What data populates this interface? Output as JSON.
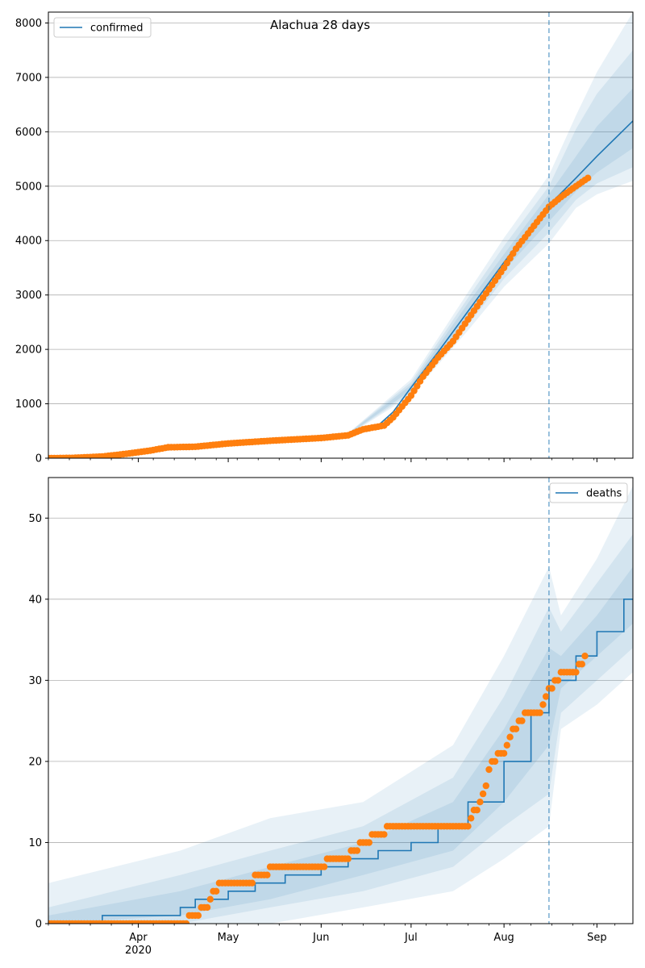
{
  "figure_title": "Alachua 28 days",
  "colors": {
    "model_line": "#1f77b4",
    "observed": "#ff7f0e",
    "band": "#1f77b4",
    "grid": "#b0b0b0",
    "vline": "#1f77b4"
  },
  "x_axis": {
    "range": [
      "2020-03-02",
      "2020-09-13"
    ],
    "major_ticks": [
      {
        "date": "2020-04-01",
        "label": "Apr",
        "sub": "2020"
      },
      {
        "date": "2020-05-01",
        "label": "May",
        "sub": ""
      },
      {
        "date": "2020-06-01",
        "label": "Jun",
        "sub": ""
      },
      {
        "date": "2020-07-01",
        "label": "Jul",
        "sub": ""
      },
      {
        "date": "2020-08-01",
        "label": "Aug",
        "sub": ""
      },
      {
        "date": "2020-09-01",
        "label": "Sep",
        "sub": ""
      }
    ],
    "forecast_start": "2020-08-16"
  },
  "chart_data": [
    {
      "type": "line",
      "name": "confirmed",
      "legend": {
        "label": "confirmed",
        "position": "top-left"
      },
      "ylim": [
        0,
        8200
      ],
      "yticks": [
        0,
        1000,
        2000,
        3000,
        4000,
        5000,
        6000,
        7000,
        8000
      ],
      "grid": "horizontal",
      "model": {
        "x": [
          "2020-03-02",
          "2020-03-15",
          "2020-04-01",
          "2020-04-15",
          "2020-05-01",
          "2020-05-15",
          "2020-06-01",
          "2020-06-10",
          "2020-06-20",
          "2020-06-25",
          "2020-07-01",
          "2020-07-10",
          "2020-07-20",
          "2020-08-01",
          "2020-08-10",
          "2020-08-16",
          "2020-08-25",
          "2020-09-01",
          "2020-09-13"
        ],
        "y": [
          0,
          10,
          90,
          180,
          270,
          320,
          380,
          430,
          600,
          850,
          1300,
          1950,
          2700,
          3600,
          4250,
          4650,
          5150,
          5550,
          6200
        ]
      },
      "bands": [
        {
          "x": [
            "2020-06-10",
            "2020-07-01",
            "2020-07-20",
            "2020-08-01",
            "2020-08-16",
            "2020-08-25",
            "2020-09-01",
            "2020-09-13"
          ],
          "lower": [
            420,
            1150,
            2350,
            3150,
            3950,
            4600,
            4850,
            5100
          ],
          "upper": [
            460,
            1450,
            3050,
            4050,
            5200,
            6300,
            7100,
            8200
          ]
        },
        {
          "x": [
            "2020-06-10",
            "2020-07-01",
            "2020-07-20",
            "2020-08-01",
            "2020-08-16",
            "2020-08-25",
            "2020-09-01",
            "2020-09-13"
          ],
          "lower": [
            425,
            1200,
            2450,
            3300,
            4150,
            4750,
            5050,
            5350
          ],
          "upper": [
            455,
            1400,
            2950,
            3900,
            5000,
            6050,
            6700,
            7500
          ]
        },
        {
          "x": [
            "2020-06-10",
            "2020-07-01",
            "2020-07-20",
            "2020-08-01",
            "2020-08-16",
            "2020-08-25",
            "2020-09-01",
            "2020-09-13"
          ],
          "lower": [
            430,
            1250,
            2550,
            3450,
            4350,
            4900,
            5250,
            5700
          ],
          "upper": [
            450,
            1350,
            2850,
            3750,
            4850,
            5550,
            6100,
            6800
          ]
        }
      ],
      "observed": {
        "x": [
          "2020-03-02",
          "2020-03-10",
          "2020-03-20",
          "2020-03-28",
          "2020-04-05",
          "2020-04-11",
          "2020-04-20",
          "2020-05-01",
          "2020-05-15",
          "2020-06-01",
          "2020-06-10",
          "2020-06-15",
          "2020-06-22",
          "2020-06-25",
          "2020-07-01",
          "2020-07-05",
          "2020-07-10",
          "2020-07-15",
          "2020-07-20",
          "2020-07-25",
          "2020-08-01",
          "2020-08-05",
          "2020-08-10",
          "2020-08-16",
          "2020-08-20",
          "2020-08-25",
          "2020-08-29"
        ],
        "y": [
          0,
          5,
          30,
          80,
          140,
          200,
          210,
          270,
          320,
          370,
          420,
          530,
          600,
          750,
          1150,
          1500,
          1850,
          2150,
          2550,
          2950,
          3500,
          3850,
          4200,
          4620,
          4800,
          5000,
          5150
        ]
      }
    },
    {
      "type": "line",
      "name": "deaths",
      "legend": {
        "label": "deaths",
        "position": "top-right"
      },
      "ylim": [
        0,
        55
      ],
      "yticks": [
        0,
        10,
        20,
        30,
        40,
        50
      ],
      "grid": "horizontal",
      "model": {
        "x": [
          "2020-03-02",
          "2020-03-11",
          "2020-03-20",
          "2020-04-01",
          "2020-04-15",
          "2020-04-20",
          "2020-05-01",
          "2020-05-10",
          "2020-05-20",
          "2020-06-01",
          "2020-06-10",
          "2020-06-20",
          "2020-07-01",
          "2020-07-10",
          "2020-07-20",
          "2020-08-01",
          "2020-08-10",
          "2020-08-16",
          "2020-08-25",
          "2020-09-01",
          "2020-09-10",
          "2020-09-13"
        ],
        "y": [
          0,
          0,
          1,
          1,
          2,
          3,
          4,
          5,
          6,
          7,
          8,
          9,
          10,
          12,
          15,
          20,
          26,
          30,
          33,
          36,
          40,
          40
        ]
      },
      "bands": [
        {
          "x": [
            "2020-03-02",
            "2020-04-15",
            "2020-05-15",
            "2020-06-15",
            "2020-07-15",
            "2020-08-01",
            "2020-08-16",
            "2020-08-20",
            "2020-09-01",
            "2020-09-13"
          ],
          "lower": [
            0,
            0,
            0,
            2,
            4,
            8,
            12,
            24,
            27,
            31
          ],
          "upper": [
            5,
            9,
            13,
            15,
            22,
            33,
            44,
            38,
            45,
            54
          ]
        },
        {
          "x": [
            "2020-03-02",
            "2020-04-15",
            "2020-05-15",
            "2020-06-15",
            "2020-07-15",
            "2020-08-01",
            "2020-08-16",
            "2020-08-20",
            "2020-09-01",
            "2020-09-13"
          ],
          "lower": [
            0,
            0,
            2,
            4,
            7,
            12,
            16,
            26,
            30,
            34
          ],
          "upper": [
            2,
            6,
            9,
            12,
            18,
            28,
            39,
            36,
            42,
            48
          ]
        },
        {
          "x": [
            "2020-03-02",
            "2020-04-15",
            "2020-05-15",
            "2020-06-15",
            "2020-07-15",
            "2020-08-01",
            "2020-08-16",
            "2020-08-20",
            "2020-09-01",
            "2020-09-13"
          ],
          "lower": [
            0,
            1,
            3,
            6,
            9,
            15,
            22,
            29,
            33,
            37
          ],
          "upper": [
            1,
            4,
            7,
            10,
            15,
            24,
            34,
            33,
            38,
            44
          ]
        }
      ],
      "observed": {
        "x": [
          "2020-03-02",
          "2020-03-15",
          "2020-04-01",
          "2020-04-15",
          "2020-04-20",
          "2020-04-24",
          "2020-04-28",
          "2020-05-05",
          "2020-05-14",
          "2020-05-15",
          "2020-05-20",
          "2020-06-01",
          "2020-06-05",
          "2020-06-10",
          "2020-06-12",
          "2020-06-15",
          "2020-06-20",
          "2020-06-25",
          "2020-07-01",
          "2020-07-10",
          "2020-07-20",
          "2020-07-25",
          "2020-07-28",
          "2020-08-01",
          "2020-08-03",
          "2020-08-06",
          "2020-08-10",
          "2020-08-13",
          "2020-08-15",
          "2020-08-17",
          "2020-08-20",
          "2020-08-25",
          "2020-08-28"
        ],
        "y": [
          0,
          0,
          0,
          0,
          1,
          2,
          5,
          5,
          6,
          7,
          7,
          7,
          8,
          8,
          9,
          10,
          11,
          12,
          12,
          12,
          12,
          16,
          20,
          21,
          23,
          25,
          26,
          26,
          28,
          29,
          31,
          31,
          33
        ]
      }
    }
  ]
}
